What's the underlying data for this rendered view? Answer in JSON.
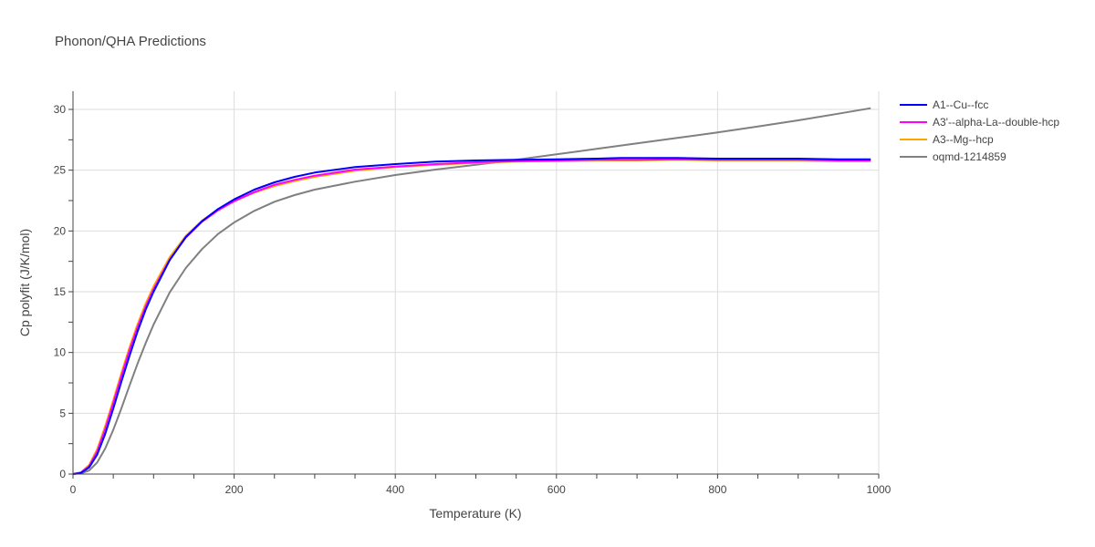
{
  "chart_data": {
    "type": "line",
    "title": "Phonon/QHA Predictions",
    "xlabel": "Temperature (K)",
    "ylabel": "Cp polyfit (J/K/mol)",
    "xlim": [
      0,
      1000
    ],
    "ylim": [
      0,
      31.5
    ],
    "xticks": [
      0,
      200,
      400,
      600,
      800,
      1000
    ],
    "yticks": [
      0,
      5,
      10,
      15,
      20,
      25,
      30
    ],
    "grid": true,
    "legend_position": "top-right, outside plot",
    "series": [
      {
        "name": "A1--Cu--fcc",
        "color": "#0000ff",
        "x": [
          0,
          10,
          20,
          30,
          40,
          50,
          60,
          70,
          80,
          90,
          100,
          120,
          140,
          160,
          180,
          200,
          225,
          250,
          275,
          300,
          350,
          400,
          450,
          500,
          550,
          600,
          650,
          680,
          700,
          750,
          800,
          850,
          900,
          950,
          990
        ],
        "y": [
          0,
          0.1,
          0.55,
          1.6,
          3.3,
          5.4,
          7.6,
          9.7,
          11.7,
          13.5,
          15.0,
          17.6,
          19.5,
          20.8,
          21.8,
          22.6,
          23.4,
          24.0,
          24.45,
          24.8,
          25.25,
          25.5,
          25.7,
          25.8,
          25.85,
          25.9,
          25.95,
          26.0,
          26.0,
          26.0,
          25.95,
          25.95,
          25.95,
          25.9,
          25.9
        ]
      },
      {
        "name": "A3'--alpha-La--double-hcp",
        "color": "#ff00ff",
        "x": [
          0,
          10,
          20,
          30,
          40,
          50,
          60,
          70,
          80,
          90,
          100,
          120,
          140,
          160,
          180,
          200,
          225,
          250,
          275,
          300,
          350,
          400,
          450,
          500,
          550,
          600,
          650,
          700,
          750,
          800,
          850,
          900,
          950,
          990
        ],
        "y": [
          0,
          0.12,
          0.65,
          1.85,
          3.7,
          5.85,
          8.05,
          10.15,
          12.05,
          13.75,
          15.2,
          17.65,
          19.45,
          20.75,
          21.7,
          22.45,
          23.2,
          23.8,
          24.2,
          24.55,
          25.05,
          25.3,
          25.5,
          25.65,
          25.75,
          25.8,
          25.85,
          25.85,
          25.9,
          25.85,
          25.85,
          25.85,
          25.8,
          25.8
        ]
      },
      {
        "name": "A3--Mg--hcp",
        "color": "#ffa500",
        "x": [
          0,
          10,
          20,
          30,
          40,
          50,
          60,
          70,
          80,
          90,
          100,
          120,
          140,
          160,
          180,
          200,
          225,
          250,
          275,
          300,
          350,
          400,
          450,
          500,
          550,
          600,
          650,
          700,
          750,
          800,
          850,
          900,
          950,
          990
        ],
        "y": [
          0,
          0.15,
          0.75,
          2.05,
          3.95,
          6.1,
          8.3,
          10.4,
          12.3,
          14.0,
          15.45,
          17.85,
          19.6,
          20.85,
          21.75,
          22.45,
          23.15,
          23.7,
          24.1,
          24.45,
          24.95,
          25.25,
          25.45,
          25.6,
          25.7,
          25.75,
          25.8,
          25.8,
          25.85,
          25.8,
          25.8,
          25.8,
          25.75,
          25.75
        ]
      },
      {
        "name": "oqmd-1214859",
        "color": "#808080",
        "x": [
          0,
          10,
          20,
          30,
          40,
          50,
          60,
          70,
          80,
          90,
          100,
          120,
          140,
          160,
          180,
          200,
          225,
          250,
          275,
          300,
          350,
          400,
          450,
          500,
          550,
          600,
          650,
          700,
          750,
          800,
          850,
          900,
          950,
          990
        ],
        "y": [
          0,
          0.05,
          0.3,
          0.95,
          2.1,
          3.65,
          5.4,
          7.25,
          9.05,
          10.75,
          12.3,
          14.95,
          16.95,
          18.5,
          19.75,
          20.7,
          21.65,
          22.4,
          22.95,
          23.4,
          24.05,
          24.6,
          25.05,
          25.45,
          25.85,
          26.3,
          26.75,
          27.2,
          27.65,
          28.1,
          28.6,
          29.1,
          29.65,
          30.1
        ]
      }
    ]
  }
}
